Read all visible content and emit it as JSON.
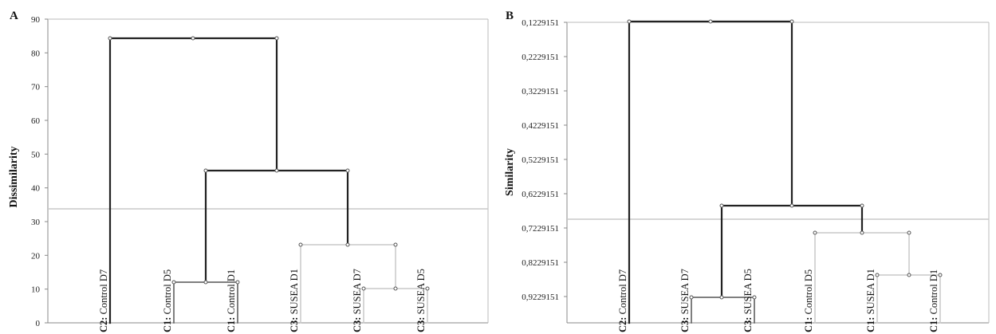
{
  "panels": [
    {
      "letter": "A",
      "y_label": "Dissimilarity",
      "y_ticks": [
        "0",
        "10",
        "20",
        "30",
        "40",
        "50",
        "60",
        "70",
        "80",
        "90"
      ],
      "leaves": [
        {
          "prefix": "C2:",
          "name": "Control D7"
        },
        {
          "prefix": "C1:",
          "name": "Control D5"
        },
        {
          "prefix": "C1:",
          "name": "Control D1"
        },
        {
          "prefix": "C3:",
          "name": "SUSEA D1"
        },
        {
          "prefix": "C3:",
          "name": "SUSEA D7"
        },
        {
          "prefix": "C3:",
          "name": "SUSEA D5"
        }
      ]
    },
    {
      "letter": "B",
      "y_label": "Similarity",
      "y_ticks": [
        "0,1229151",
        "0,2229151",
        "0,3229151",
        "0,4229151",
        "0,5229151",
        "0,6229151",
        "0,7229151",
        "0,8229151",
        "0,9229151"
      ],
      "leaves": [
        {
          "prefix": "C2:",
          "name": "Control D7"
        },
        {
          "prefix": "C3:",
          "name": "SUSEA D7"
        },
        {
          "prefix": "C3:",
          "name": "SUSEA D5"
        },
        {
          "prefix": "C1:",
          "name": "Control D5"
        },
        {
          "prefix": "C1:",
          "name": "SUSEA D1"
        },
        {
          "prefix": "C1:",
          "name": "Control D1"
        }
      ]
    }
  ]
}
